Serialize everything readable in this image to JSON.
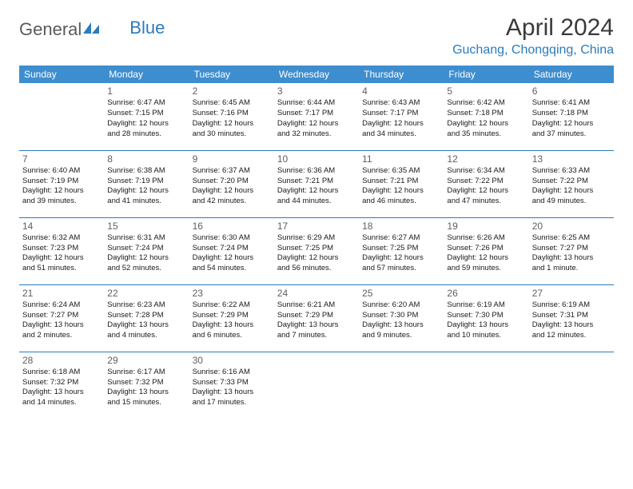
{
  "logo": {
    "text1": "General",
    "text2": "Blue"
  },
  "title": "April 2024",
  "location": "Guchang, Chongqing, China",
  "weekday_color": "#3e8ecf",
  "accent_color": "#2b7bbd",
  "weekdays": [
    "Sunday",
    "Monday",
    "Tuesday",
    "Wednesday",
    "Thursday",
    "Friday",
    "Saturday"
  ],
  "weeks": [
    [
      null,
      {
        "n": "1",
        "sr": "Sunrise: 6:47 AM",
        "ss": "Sunset: 7:15 PM",
        "d1": "Daylight: 12 hours",
        "d2": "and 28 minutes."
      },
      {
        "n": "2",
        "sr": "Sunrise: 6:45 AM",
        "ss": "Sunset: 7:16 PM",
        "d1": "Daylight: 12 hours",
        "d2": "and 30 minutes."
      },
      {
        "n": "3",
        "sr": "Sunrise: 6:44 AM",
        "ss": "Sunset: 7:17 PM",
        "d1": "Daylight: 12 hours",
        "d2": "and 32 minutes."
      },
      {
        "n": "4",
        "sr": "Sunrise: 6:43 AM",
        "ss": "Sunset: 7:17 PM",
        "d1": "Daylight: 12 hours",
        "d2": "and 34 minutes."
      },
      {
        "n": "5",
        "sr": "Sunrise: 6:42 AM",
        "ss": "Sunset: 7:18 PM",
        "d1": "Daylight: 12 hours",
        "d2": "and 35 minutes."
      },
      {
        "n": "6",
        "sr": "Sunrise: 6:41 AM",
        "ss": "Sunset: 7:18 PM",
        "d1": "Daylight: 12 hours",
        "d2": "and 37 minutes."
      }
    ],
    [
      {
        "n": "7",
        "sr": "Sunrise: 6:40 AM",
        "ss": "Sunset: 7:19 PM",
        "d1": "Daylight: 12 hours",
        "d2": "and 39 minutes."
      },
      {
        "n": "8",
        "sr": "Sunrise: 6:38 AM",
        "ss": "Sunset: 7:19 PM",
        "d1": "Daylight: 12 hours",
        "d2": "and 41 minutes."
      },
      {
        "n": "9",
        "sr": "Sunrise: 6:37 AM",
        "ss": "Sunset: 7:20 PM",
        "d1": "Daylight: 12 hours",
        "d2": "and 42 minutes."
      },
      {
        "n": "10",
        "sr": "Sunrise: 6:36 AM",
        "ss": "Sunset: 7:21 PM",
        "d1": "Daylight: 12 hours",
        "d2": "and 44 minutes."
      },
      {
        "n": "11",
        "sr": "Sunrise: 6:35 AM",
        "ss": "Sunset: 7:21 PM",
        "d1": "Daylight: 12 hours",
        "d2": "and 46 minutes."
      },
      {
        "n": "12",
        "sr": "Sunrise: 6:34 AM",
        "ss": "Sunset: 7:22 PM",
        "d1": "Daylight: 12 hours",
        "d2": "and 47 minutes."
      },
      {
        "n": "13",
        "sr": "Sunrise: 6:33 AM",
        "ss": "Sunset: 7:22 PM",
        "d1": "Daylight: 12 hours",
        "d2": "and 49 minutes."
      }
    ],
    [
      {
        "n": "14",
        "sr": "Sunrise: 6:32 AM",
        "ss": "Sunset: 7:23 PM",
        "d1": "Daylight: 12 hours",
        "d2": "and 51 minutes."
      },
      {
        "n": "15",
        "sr": "Sunrise: 6:31 AM",
        "ss": "Sunset: 7:24 PM",
        "d1": "Daylight: 12 hours",
        "d2": "and 52 minutes."
      },
      {
        "n": "16",
        "sr": "Sunrise: 6:30 AM",
        "ss": "Sunset: 7:24 PM",
        "d1": "Daylight: 12 hours",
        "d2": "and 54 minutes."
      },
      {
        "n": "17",
        "sr": "Sunrise: 6:29 AM",
        "ss": "Sunset: 7:25 PM",
        "d1": "Daylight: 12 hours",
        "d2": "and 56 minutes."
      },
      {
        "n": "18",
        "sr": "Sunrise: 6:27 AM",
        "ss": "Sunset: 7:25 PM",
        "d1": "Daylight: 12 hours",
        "d2": "and 57 minutes."
      },
      {
        "n": "19",
        "sr": "Sunrise: 6:26 AM",
        "ss": "Sunset: 7:26 PM",
        "d1": "Daylight: 12 hours",
        "d2": "and 59 minutes."
      },
      {
        "n": "20",
        "sr": "Sunrise: 6:25 AM",
        "ss": "Sunset: 7:27 PM",
        "d1": "Daylight: 13 hours",
        "d2": "and 1 minute."
      }
    ],
    [
      {
        "n": "21",
        "sr": "Sunrise: 6:24 AM",
        "ss": "Sunset: 7:27 PM",
        "d1": "Daylight: 13 hours",
        "d2": "and 2 minutes."
      },
      {
        "n": "22",
        "sr": "Sunrise: 6:23 AM",
        "ss": "Sunset: 7:28 PM",
        "d1": "Daylight: 13 hours",
        "d2": "and 4 minutes."
      },
      {
        "n": "23",
        "sr": "Sunrise: 6:22 AM",
        "ss": "Sunset: 7:29 PM",
        "d1": "Daylight: 13 hours",
        "d2": "and 6 minutes."
      },
      {
        "n": "24",
        "sr": "Sunrise: 6:21 AM",
        "ss": "Sunset: 7:29 PM",
        "d1": "Daylight: 13 hours",
        "d2": "and 7 minutes."
      },
      {
        "n": "25",
        "sr": "Sunrise: 6:20 AM",
        "ss": "Sunset: 7:30 PM",
        "d1": "Daylight: 13 hours",
        "d2": "and 9 minutes."
      },
      {
        "n": "26",
        "sr": "Sunrise: 6:19 AM",
        "ss": "Sunset: 7:30 PM",
        "d1": "Daylight: 13 hours",
        "d2": "and 10 minutes."
      },
      {
        "n": "27",
        "sr": "Sunrise: 6:19 AM",
        "ss": "Sunset: 7:31 PM",
        "d1": "Daylight: 13 hours",
        "d2": "and 12 minutes."
      }
    ],
    [
      {
        "n": "28",
        "sr": "Sunrise: 6:18 AM",
        "ss": "Sunset: 7:32 PM",
        "d1": "Daylight: 13 hours",
        "d2": "and 14 minutes."
      },
      {
        "n": "29",
        "sr": "Sunrise: 6:17 AM",
        "ss": "Sunset: 7:32 PM",
        "d1": "Daylight: 13 hours",
        "d2": "and 15 minutes."
      },
      {
        "n": "30",
        "sr": "Sunrise: 6:16 AM",
        "ss": "Sunset: 7:33 PM",
        "d1": "Daylight: 13 hours",
        "d2": "and 17 minutes."
      },
      null,
      null,
      null,
      null
    ]
  ]
}
